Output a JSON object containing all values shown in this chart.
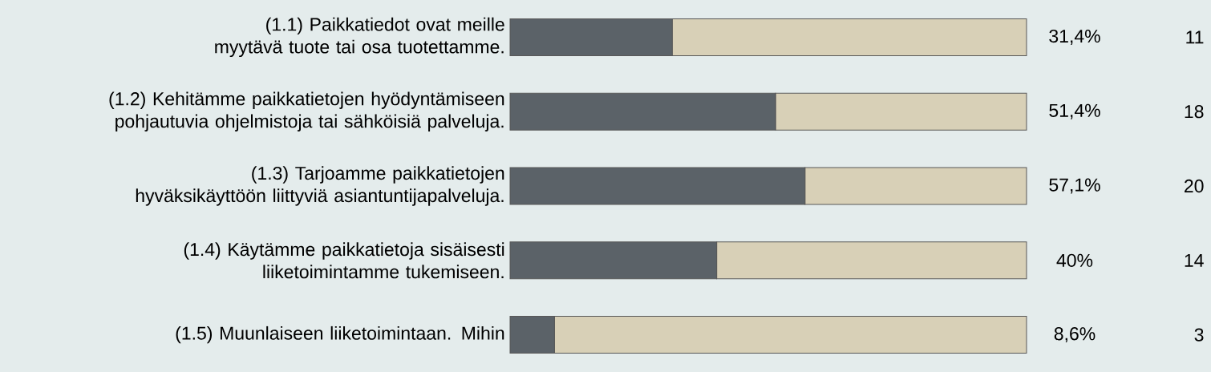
{
  "chart_data": {
    "type": "bar",
    "orientation": "horizontal",
    "stacked": true,
    "categories": [
      "(1.1) Paikkatiedot ovat meille myytävä tuote tai osa tuotettamme.",
      "(1.2) Kehitämme paikkatietojen hyödyntämiseen pohjautuvia ohjelmistoja tai sähköisiä palveluja.",
      "(1.3) Tarjoamme paikkatietojen hyväksikäyttöön liittyviä asiantuntijapalveluja.",
      "(1.4) Käytämme paikkatietoja sisäisesti liiketoimintamme tukemiseen.",
      "(1.5) Muunlaiseen liiketoimintaan. Mihin"
    ],
    "series": [
      {
        "color": "#5b6268",
        "values": [
          31.4,
          51.4,
          57.1,
          40,
          8.6
        ],
        "value_labels": [
          "31,4%",
          "51,4%",
          "57,1%",
          "40%",
          "8,6%"
        ]
      },
      {
        "color": "#d8d0b7",
        "values": [
          68.6,
          48.6,
          42.9,
          60,
          91.4
        ]
      }
    ],
    "annotations": [
      "11",
      "18",
      "20",
      "14",
      "3"
    ]
  }
}
